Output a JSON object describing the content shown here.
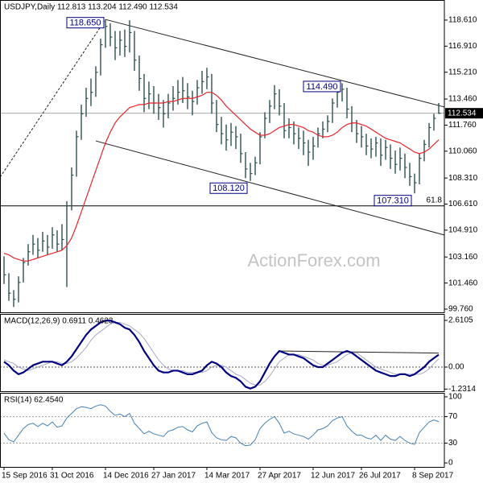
{
  "chart_data": [
    {
      "type": "ohlc",
      "title": "USDJPY,Daily  112.813 113.204 112.490 112.534",
      "watermark": "ActionForex.com",
      "categories": [
        "15 Sep 2016",
        null,
        null,
        null,
        null,
        null,
        null,
        null,
        null,
        null,
        "31 Oct 2016",
        null,
        null,
        null,
        null,
        null,
        null,
        null,
        null,
        null,
        null,
        "14 Dec 2016",
        null,
        null,
        null,
        null,
        null,
        null,
        null,
        null,
        null,
        "27 Jan 2017",
        null,
        null,
        null,
        null,
        null,
        null,
        null,
        null,
        null,
        null,
        "14 Mar 2017",
        null,
        null,
        null,
        null,
        null,
        null,
        null,
        null,
        null,
        null,
        "27 Apr 2017",
        null,
        null,
        null,
        null,
        null,
        null,
        null,
        null,
        null,
        null,
        "12 Jun 2017",
        null,
        null,
        null,
        null,
        null,
        null,
        null,
        null,
        null,
        "26 Jul 2017",
        null,
        null,
        null,
        null,
        null,
        null,
        null,
        null,
        null,
        null,
        "8 Sep 2017",
        null,
        null,
        null,
        null,
        null
      ],
      "high": [
        103.2,
        102.1,
        101.0,
        101.9,
        103.1,
        104.0,
        104.6,
        104.4,
        104.8,
        104.6,
        105.1,
        104.9,
        105.3,
        106.8,
        109.0,
        111.4,
        113.1,
        114.2,
        114.8,
        115.6,
        117.4,
        118.65,
        118.4,
        117.9,
        117.9,
        118.0,
        118.6,
        117.9,
        116.3,
        115.1,
        114.6,
        114.3,
        113.8,
        113.4,
        113.8,
        114.3,
        114.7,
        114.9,
        114.5,
        114.0,
        114.7,
        115.3,
        115.5,
        115.1,
        113.4,
        112.3,
        111.8,
        111.9,
        111.7,
        111.2,
        110.0,
        109.3,
        109.7,
        111.3,
        112.6,
        113.4,
        114.37,
        114.1,
        113.2,
        112.2,
        112.0,
        111.6,
        111.4,
        110.8,
        111.0,
        111.6,
        112.0,
        112.4,
        113.5,
        114.2,
        114.49,
        114.2,
        113.0,
        112.1,
        111.7,
        111.2,
        110.9,
        111.0,
        110.9,
        110.8,
        110.5,
        110.1,
        110.3,
        109.9,
        109.3,
        108.6,
        109.9,
        110.8,
        111.9,
        112.5,
        113.204
      ],
      "low": [
        101.4,
        100.3,
        99.9,
        100.2,
        101.5,
        102.6,
        103.3,
        103.1,
        103.5,
        103.3,
        103.7,
        103.5,
        103.6,
        101.2,
        106.2,
        108.4,
        110.8,
        112.3,
        113.0,
        113.6,
        115.0,
        116.8,
        116.9,
        116.0,
        116.3,
        116.2,
        116.5,
        115.3,
        114.0,
        112.6,
        112.8,
        112.5,
        112.1,
        111.6,
        112.2,
        112.7,
        113.1,
        113.2,
        112.8,
        112.4,
        113.1,
        113.8,
        114.1,
        112.5,
        111.3,
        110.5,
        110.1,
        110.4,
        110.2,
        109.3,
        108.3,
        108.12,
        108.5,
        109.2,
        110.9,
        111.9,
        112.8,
        112.4,
        110.9,
        110.9,
        110.5,
        110.2,
        109.8,
        109.1,
        109.5,
        110.3,
        110.9,
        111.3,
        111.9,
        112.9,
        113.3,
        112.2,
        111.3,
        110.6,
        110.3,
        109.8,
        109.6,
        109.7,
        109.1,
        109.5,
        108.9,
        108.6,
        108.8,
        108.3,
        107.8,
        107.31,
        107.9,
        109.4,
        110.3,
        111.4,
        112.49
      ],
      "close": [
        102.0,
        100.8,
        100.4,
        101.5,
        102.8,
        103.5,
        104.0,
        103.6,
        104.2,
        103.8,
        104.6,
        104.0,
        104.3,
        106.5,
        108.5,
        111.0,
        112.5,
        113.5,
        113.9,
        115.2,
        117.0,
        118.2,
        117.5,
        116.8,
        117.3,
        116.9,
        117.8,
        116.0,
        114.8,
        113.5,
        113.8,
        113.2,
        112.9,
        112.5,
        113.2,
        113.5,
        113.9,
        114.0,
        113.6,
        113.3,
        114.2,
        114.6,
        114.9,
        113.2,
        111.8,
        111.2,
        110.8,
        111.3,
        111.0,
        109.9,
        108.9,
        108.6,
        109.3,
        111.0,
        112.2,
        113.0,
        113.8,
        113.0,
        111.4,
        111.6,
        111.2,
        110.9,
        110.6,
        110.0,
        110.4,
        111.2,
        111.5,
        112.0,
        113.2,
        113.9,
        114.1,
        112.8,
        111.9,
        111.2,
        111.0,
        110.4,
        110.2,
        110.6,
        109.8,
        110.3,
        109.6,
        109.2,
        109.6,
        109.0,
        108.4,
        108.0,
        109.6,
        110.5,
        111.6,
        112.2,
        112.534
      ],
      "ma": [
        103.4,
        103.3,
        103.1,
        103.0,
        102.9,
        102.9,
        103.0,
        103.1,
        103.2,
        103.3,
        103.4,
        103.5,
        103.6,
        103.9,
        104.4,
        105.2,
        106.1,
        107.0,
        107.9,
        108.8,
        109.7,
        110.6,
        111.3,
        111.9,
        112.3,
        112.6,
        112.9,
        113.0,
        113.1,
        113.1,
        113.2,
        113.2,
        113.2,
        113.2,
        113.3,
        113.3,
        113.4,
        113.5,
        113.5,
        113.5,
        113.6,
        113.7,
        113.9,
        113.9,
        113.7,
        113.4,
        113.0,
        112.7,
        112.4,
        112.1,
        111.8,
        111.5,
        111.3,
        111.1,
        111.1,
        111.2,
        111.4,
        111.6,
        111.7,
        111.8,
        111.8,
        111.7,
        111.6,
        111.4,
        111.3,
        111.1,
        111.0,
        111.0,
        111.1,
        111.3,
        111.6,
        111.8,
        111.9,
        111.9,
        111.8,
        111.7,
        111.5,
        111.3,
        111.1,
        110.9,
        110.8,
        110.7,
        110.6,
        110.4,
        110.2,
        110.0,
        109.9,
        110.0,
        110.2,
        110.5,
        110.8
      ],
      "bar_color": "#2f4f4f",
      "ma_color": "#e8262b",
      "ylim": [
        99.55,
        119.92
      ],
      "yticks": [
        {
          "value": 99.76,
          "label": "99.760"
        },
        {
          "value": 101.46,
          "label": "101.460"
        },
        {
          "value": 103.16,
          "label": "103.160"
        },
        {
          "value": 104.91,
          "label": "104.910"
        },
        {
          "value": 106.61,
          "label": "106.610"
        },
        {
          "value": 108.31,
          "label": "108.310"
        },
        {
          "value": 110.06,
          "label": "110.060"
        },
        {
          "value": 111.76,
          "label": "111.760"
        },
        {
          "value": 113.46,
          "label": "113.460"
        },
        {
          "value": 115.21,
          "label": "115.210"
        },
        {
          "value": 116.91,
          "label": "116.910"
        },
        {
          "value": 118.61,
          "label": "118.610"
        }
      ],
      "annotations": [
        {
          "index": 21,
          "value": 118.65,
          "label": "118.650"
        },
        {
          "index": 70,
          "value": 114.49,
          "label": "114.490"
        },
        {
          "index": 51,
          "value": 108.12,
          "label": "108.120"
        },
        {
          "index": 85,
          "value": 107.31,
          "label": "107.310"
        }
      ],
      "trend_lines": [
        {
          "dashed": true,
          "points": [
            [
              -0.8,
              108.37
            ],
            [
              21,
              118.65
            ]
          ]
        },
        {
          "dashed": false,
          "points": [
            [
              21,
              118.65
            ],
            [
              91.2,
              112.94
            ]
          ]
        },
        {
          "dashed": false,
          "points": [
            [
              19,
              110.73
            ],
            [
              91.2,
              104.59
            ]
          ]
        }
      ],
      "levels": [
        {
          "label": "61.8",
          "value": 106.49
        }
      ]
    },
    {
      "type": "macd",
      "title": "MACD(12,26,9) 0.6911 0.4623",
      "macd": [
        0.3,
        0.1,
        -0.2,
        -0.4,
        -0.3,
        -0.1,
        0.1,
        0.2,
        0.3,
        0.3,
        0.3,
        0.2,
        0.1,
        0.3,
        0.6,
        1.0,
        1.4,
        1.8,
        2.1,
        2.3,
        2.5,
        2.6,
        2.6,
        2.5,
        2.4,
        2.2,
        2.1,
        1.8,
        1.4,
        0.9,
        0.5,
        0.1,
        -0.2,
        -0.3,
        -0.3,
        -0.2,
        -0.2,
        -0.3,
        -0.4,
        -0.4,
        -0.3,
        -0.2,
        0.1,
        0.3,
        0.2,
        0.0,
        -0.3,
        -0.5,
        -0.6,
        -0.8,
        -1.1,
        -1.2,
        -1.1,
        -0.8,
        -0.3,
        0.2,
        0.6,
        0.9,
        0.8,
        0.7,
        0.7,
        0.6,
        0.5,
        0.3,
        0.1,
        0.0,
        0.0,
        0.2,
        0.4,
        0.6,
        0.8,
        0.9,
        0.8,
        0.6,
        0.4,
        0.2,
        0.0,
        -0.2,
        -0.3,
        -0.4,
        -0.5,
        -0.5,
        -0.4,
        -0.4,
        -0.5,
        -0.4,
        -0.2,
        0.0,
        0.3,
        0.5,
        0.6911
      ],
      "signal": [
        0.4,
        0.3,
        0.2,
        0.0,
        -0.1,
        -0.2,
        -0.1,
        0.0,
        0.1,
        0.2,
        0.3,
        0.3,
        0.2,
        0.2,
        0.3,
        0.5,
        0.8,
        1.1,
        1.5,
        1.8,
        2.0,
        2.2,
        2.4,
        2.5,
        2.5,
        2.4,
        2.3,
        2.1,
        1.9,
        1.6,
        1.2,
        0.8,
        0.4,
        0.1,
        -0.1,
        -0.2,
        -0.2,
        -0.2,
        -0.3,
        -0.3,
        -0.3,
        -0.3,
        -0.2,
        0.0,
        0.1,
        0.1,
        0.0,
        -0.2,
        -0.4,
        -0.5,
        -0.7,
        -0.9,
        -1.0,
        -1.0,
        -0.8,
        -0.5,
        -0.1,
        0.3,
        0.5,
        0.7,
        0.7,
        0.7,
        0.6,
        0.5,
        0.4,
        0.2,
        0.1,
        0.1,
        0.2,
        0.3,
        0.5,
        0.7,
        0.8,
        0.8,
        0.6,
        0.4,
        0.2,
        0.0,
        -0.1,
        -0.2,
        -0.3,
        -0.4,
        -0.4,
        -0.4,
        -0.4,
        -0.4,
        -0.4,
        -0.3,
        -0.1,
        0.2,
        0.4623
      ],
      "macd_color": "#000080",
      "signal_color": "#a8a8c8",
      "ylim": [
        -1.35,
        2.97
      ],
      "yticks": [
        2.6105,
        {
          "value": 0,
          "label": "0.00"
        },
        -1.2314
      ],
      "zero_line": true,
      "trend_lines": [
        {
          "dashed": false,
          "points": [
            [
              57,
              0.9
            ],
            [
              90,
              0.78
            ]
          ]
        }
      ]
    },
    {
      "type": "rsi",
      "title": "RSI(14) 62.4540",
      "values": [
        45,
        35,
        32,
        42,
        52,
        58,
        60,
        55,
        60,
        56,
        62,
        54,
        56,
        68,
        75,
        82,
        85,
        84,
        82,
        86,
        88,
        86,
        78,
        72,
        74,
        70,
        75,
        60,
        52,
        44,
        48,
        44,
        42,
        40,
        48,
        50,
        54,
        55,
        50,
        47,
        56,
        60,
        62,
        46,
        38,
        35,
        34,
        40,
        38,
        30,
        26,
        27,
        35,
        52,
        60,
        66,
        70,
        60,
        45,
        48,
        44,
        42,
        40,
        36,
        42,
        50,
        52,
        56,
        64,
        68,
        70,
        56,
        48,
        42,
        42,
        38,
        36,
        42,
        34,
        42,
        36,
        34,
        40,
        34,
        30,
        28,
        46,
        54,
        62,
        65,
        62.454
      ],
      "color": "#4682b4",
      "ylim": [
        -6,
        106
      ],
      "yticks": [
        100,
        70,
        30,
        0
      ],
      "levels": [
        70,
        30
      ]
    }
  ]
}
